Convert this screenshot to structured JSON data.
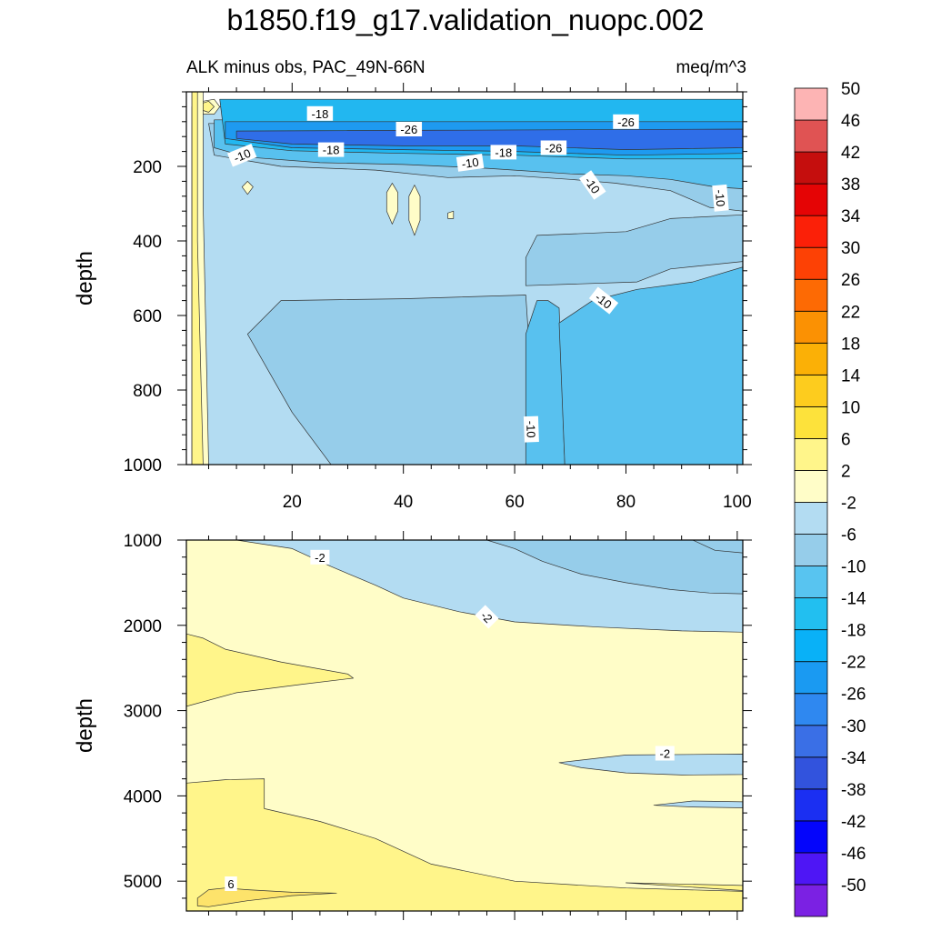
{
  "page": {
    "title": "b1850.f19_g17.validation_nuopc.002",
    "subtitle_left": "ALK minus obs, PAC_49N-66N",
    "subtitle_right": "meq/m^3"
  },
  "colors": {
    "frame": "#000000",
    "contour_line": "#333333"
  },
  "chart_data": [
    {
      "type": "heatmap",
      "name": "upper-panel",
      "xlabel": "",
      "ylabel": "depth",
      "xlim": [
        1,
        101
      ],
      "ylim": [
        0,
        1000
      ],
      "y_inverted": true,
      "x_ticks": [
        20,
        40,
        60,
        80,
        100
      ],
      "y_ticks": [
        200,
        400,
        600,
        800,
        1000
      ],
      "layers": [
        {
          "color": "#b3dcf2",
          "points": [
            [
              2,
              1000
            ],
            [
              2,
              40
            ],
            [
              101,
              40
            ],
            [
              101,
              1000
            ]
          ]
        },
        {
          "color": "#96cdea",
          "points": [
            [
              27,
              1000
            ],
            [
              20,
              860
            ],
            [
              12,
              650
            ],
            [
              18,
              560
            ],
            [
              40,
              555
            ],
            [
              62,
              545
            ],
            [
              64,
              1000
            ]
          ]
        },
        {
          "color": "#96cdea",
          "points": [
            [
              62,
              520
            ],
            [
              82,
              510
            ],
            [
              88,
              475
            ],
            [
              101,
              455
            ],
            [
              101,
              330
            ],
            [
              88,
              340
            ],
            [
              80,
              375
            ],
            [
              64,
              385
            ],
            [
              62,
              445
            ]
          ]
        },
        {
          "color": "#96cdea",
          "points": [
            [
              5,
              85
            ],
            [
              101,
              85
            ],
            [
              101,
              320
            ],
            [
              95,
              310
            ],
            [
              88,
              265
            ],
            [
              78,
              245
            ],
            [
              70,
              235
            ],
            [
              60,
              225
            ],
            [
              48,
              230
            ],
            [
              35,
              210
            ],
            [
              18,
              200
            ],
            [
              6,
              170
            ]
          ]
        },
        {
          "color": "#58c1ef",
          "points": [
            [
              62,
              1000
            ],
            [
              62,
              650
            ],
            [
              64,
              560
            ],
            [
              66,
              560
            ],
            [
              68,
              580
            ],
            [
              69,
              1000
            ]
          ]
        },
        {
          "color": "#58c1ef",
          "points": [
            [
              69,
              1000
            ],
            [
              68,
              620
            ],
            [
              74,
              560
            ],
            [
              82,
              530
            ],
            [
              92,
              510
            ],
            [
              101,
              470
            ],
            [
              101,
              1000
            ]
          ]
        },
        {
          "color": "#58c1ef",
          "points": [
            [
              6,
              75
            ],
            [
              101,
              75
            ],
            [
              101,
              260
            ],
            [
              96,
              255
            ],
            [
              88,
              235
            ],
            [
              80,
              225
            ],
            [
              70,
              220
            ],
            [
              55,
              205
            ],
            [
              40,
              195
            ],
            [
              25,
              190
            ],
            [
              12,
              175
            ],
            [
              6,
              150
            ]
          ]
        },
        {
          "color": "#22b7f0",
          "points": [
            [
              7,
              20
            ],
            [
              101,
              20
            ],
            [
              101,
              180
            ],
            [
              80,
              180
            ],
            [
              60,
              170
            ],
            [
              40,
              165
            ],
            [
              20,
              158
            ],
            [
              8,
              140
            ]
          ]
        },
        {
          "color": "#1e9af0",
          "points": [
            [
              8,
              80
            ],
            [
              101,
              80
            ],
            [
              101,
              165
            ],
            [
              80,
              170
            ],
            [
              60,
              160
            ],
            [
              40,
              155
            ],
            [
              20,
              150
            ],
            [
              8,
              125
            ]
          ]
        },
        {
          "color": "#2f6ee8",
          "points": [
            [
              10,
              105
            ],
            [
              101,
              100
            ],
            [
              101,
              150
            ],
            [
              80,
              155
            ],
            [
              60,
              145
            ],
            [
              40,
              145
            ],
            [
              20,
              140
            ],
            [
              10,
              125
            ]
          ]
        },
        {
          "color": "#fffdc8",
          "points": [
            [
              2,
              1000
            ],
            [
              2,
              0
            ],
            [
              4,
              0
            ],
            [
              4,
              300
            ],
            [
              5,
              1000
            ]
          ]
        },
        {
          "color": "#fff58a",
          "points": [
            [
              2,
              1000
            ],
            [
              2,
              0
            ],
            [
              3,
              0
            ],
            [
              3,
              400
            ],
            [
              4,
              1000
            ]
          ]
        },
        {
          "color": "#fffdc8",
          "points": [
            [
              11,
              255
            ],
            [
              12,
              240
            ],
            [
              13,
              255
            ],
            [
              12,
              275
            ]
          ]
        },
        {
          "color": "#fffdc8",
          "points": [
            [
              37,
              270
            ],
            [
              38,
              245
            ],
            [
              39,
              270
            ],
            [
              39,
              320
            ],
            [
              38,
              355
            ],
            [
              37,
              320
            ]
          ]
        },
        {
          "color": "#fffdc8",
          "points": [
            [
              41,
              280
            ],
            [
              42,
              250
            ],
            [
              43,
              280
            ],
            [
              43,
              345
            ],
            [
              42,
              385
            ],
            [
              41,
              345
            ]
          ]
        },
        {
          "color": "#fffdc8",
          "points": [
            [
              48,
              325
            ],
            [
              49,
              320
            ],
            [
              49,
              340
            ],
            [
              48,
              340
            ]
          ]
        },
        {
          "color": "#fffdc8",
          "points": [
            [
              4,
              25
            ],
            [
              6,
              20
            ],
            [
              7,
              40
            ],
            [
              6,
              60
            ],
            [
              4,
              60
            ]
          ]
        },
        {
          "color": "#fff58a",
          "points": [
            [
              4,
              30
            ],
            [
              5,
              25
            ],
            [
              6,
              40
            ],
            [
              5,
              55
            ],
            [
              4,
              50
            ]
          ]
        }
      ],
      "contour_labels": [
        {
          "text": "-18",
          "x": 25,
          "y": 58,
          "angle": 0
        },
        {
          "text": "-26",
          "x": 41,
          "y": 100,
          "angle": 0
        },
        {
          "text": "-26",
          "x": 80,
          "y": 80,
          "angle": 0
        },
        {
          "text": "-18",
          "x": 27,
          "y": 155,
          "angle": 0
        },
        {
          "text": "-10",
          "x": 11,
          "y": 170,
          "angle": -22
        },
        {
          "text": "-10",
          "x": 52,
          "y": 190,
          "angle": -8
        },
        {
          "text": "-18",
          "x": 58,
          "y": 162,
          "angle": 0
        },
        {
          "text": "-26",
          "x": 67,
          "y": 150,
          "angle": 0
        },
        {
          "text": "-10",
          "x": 74,
          "y": 250,
          "angle": 55
        },
        {
          "text": "-10",
          "x": 97,
          "y": 285,
          "angle": 85
        },
        {
          "text": "-10",
          "x": 76,
          "y": 560,
          "angle": 38
        },
        {
          "text": "-10",
          "x": 63,
          "y": 905,
          "angle": 88
        }
      ]
    },
    {
      "type": "heatmap",
      "name": "lower-panel",
      "xlabel": "",
      "ylabel": "depth",
      "xlim": [
        1,
        101
      ],
      "ylim": [
        1000,
        5350
      ],
      "y_inverted": true,
      "x_ticks": [
        20,
        40,
        60,
        80,
        100
      ],
      "y_ticks": [
        1000,
        2000,
        3000,
        4000,
        5000
      ],
      "layers": [
        {
          "color": "#fffdc8",
          "points": [
            [
              1,
              1000
            ],
            [
              101,
              1000
            ],
            [
              101,
              5350
            ],
            [
              1,
              5350
            ]
          ]
        },
        {
          "color": "#b3dcf2",
          "points": [
            [
              10,
              1000
            ],
            [
              101,
              1000
            ],
            [
              101,
              2080
            ],
            [
              90,
              2065
            ],
            [
              75,
              2020
            ],
            [
              60,
              1960
            ],
            [
              50,
              1840
            ],
            [
              40,
              1680
            ],
            [
              35,
              1530
            ],
            [
              27,
              1310
            ],
            [
              20,
              1100
            ]
          ]
        },
        {
          "color": "#96cdea",
          "points": [
            [
              55,
              1000
            ],
            [
              101,
              1000
            ],
            [
              101,
              1630
            ],
            [
              95,
              1620
            ],
            [
              88,
              1580
            ],
            [
              80,
              1500
            ],
            [
              72,
              1400
            ],
            [
              65,
              1250
            ],
            [
              60,
              1100
            ]
          ]
        },
        {
          "color": "#96cdea",
          "points": [
            [
              92,
              1000
            ],
            [
              101,
              1000
            ],
            [
              101,
              1150
            ],
            [
              96,
              1120
            ]
          ]
        },
        {
          "color": "#b3dcf2",
          "points": [
            [
              68,
              3610
            ],
            [
              80,
              3520
            ],
            [
              101,
              3510
            ],
            [
              101,
              3750
            ],
            [
              90,
              3755
            ],
            [
              80,
              3730
            ],
            [
              72,
              3670
            ]
          ]
        },
        {
          "color": "#b3dcf2",
          "points": [
            [
              85,
              4110
            ],
            [
              92,
              4060
            ],
            [
              101,
              4070
            ],
            [
              101,
              4140
            ],
            [
              92,
              4130
            ]
          ]
        },
        {
          "color": "#fff58a",
          "points": [
            [
              1,
              2100
            ],
            [
              4,
              2150
            ],
            [
              8,
              2280
            ],
            [
              18,
              2430
            ],
            [
              30,
              2570
            ],
            [
              31,
              2620
            ],
            [
              22,
              2690
            ],
            [
              10,
              2790
            ],
            [
              1,
              2950
            ]
          ]
        },
        {
          "color": "#fff58a",
          "points": [
            [
              1,
              3850
            ],
            [
              8,
              3810
            ],
            [
              15,
              3800
            ],
            [
              15,
              4150
            ],
            [
              25,
              4300
            ],
            [
              35,
              4500
            ],
            [
              45,
              4800
            ],
            [
              60,
              5000
            ],
            [
              80,
              5080
            ],
            [
              101,
              5120
            ],
            [
              101,
              5350
            ],
            [
              1,
              5350
            ]
          ]
        },
        {
          "color": "#fff58a",
          "points": [
            [
              101,
              5050
            ],
            [
              80,
              5020
            ],
            [
              101,
              5110
            ]
          ]
        },
        {
          "color": "#fde36b",
          "points": [
            [
              3,
              5200
            ],
            [
              5,
              5100
            ],
            [
              8,
              5080
            ],
            [
              12,
              5100
            ],
            [
              20,
              5130
            ],
            [
              28,
              5140
            ],
            [
              20,
              5170
            ],
            [
              12,
              5230
            ],
            [
              5,
              5300
            ],
            [
              3,
              5290
            ]
          ]
        }
      ],
      "contour_labels": [
        {
          "text": "-2",
          "x": 25,
          "y": 1200,
          "angle": 0
        },
        {
          "text": "-2",
          "x": 55,
          "y": 1900,
          "angle": 45
        },
        {
          "text": "-2",
          "x": 87,
          "y": 3500,
          "angle": 0
        },
        {
          "text": "6",
          "x": 9,
          "y": 5030,
          "angle": 0
        }
      ]
    },
    {
      "type": "colorbar",
      "name": "legend",
      "colors": [
        "#7b21e3",
        "#4e16f5",
        "#0405fb",
        "#1b2ff2",
        "#3253dd",
        "#3a6fe6",
        "#2f88f0",
        "#1a9af2",
        "#09b1f7",
        "#22bff0",
        "#58c4f0",
        "#96cdea",
        "#b3dcf2",
        "#fffdc8",
        "#fff58a",
        "#fde23b",
        "#fdcc1e",
        "#fbb006",
        "#fb9103",
        "#fd6a04",
        "#fd4105",
        "#fb2008",
        "#e50405",
        "#c50e0d",
        "#e05353",
        "#fdb4b4"
      ],
      "labels": [
        "-50",
        "-46",
        "-42",
        "-38",
        "-34",
        "-30",
        "-26",
        "-22",
        "-18",
        "-14",
        "-10",
        "-6",
        "-2",
        "2",
        "6",
        "10",
        "14",
        "18",
        "22",
        "26",
        "30",
        "34",
        "38",
        "42",
        "46",
        "50"
      ]
    }
  ]
}
